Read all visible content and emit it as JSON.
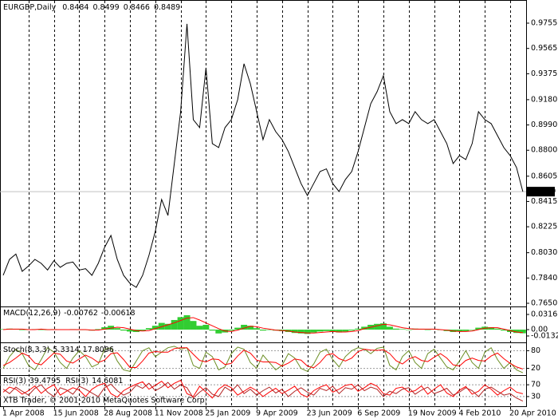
{
  "chart_data": {
    "type": "line",
    "title": "EURGBP,Daily",
    "ohlc": [
      0.8484,
      0.8499,
      0.8466,
      0.8489
    ],
    "watermark": "XTB Trader, © 2001-2010 MetaQuotes Software Corp.",
    "color": "#000000",
    "grid": true,
    "categories": [
      "1 Apr 2008",
      null,
      null,
      null,
      null,
      null,
      null,
      null,
      "15 Jun 2008",
      null,
      null,
      null,
      null,
      null,
      null,
      null,
      "28 Aug 2008",
      null,
      null,
      null,
      null,
      null,
      null,
      null,
      "11 Nov 2008",
      null,
      null,
      null,
      null,
      null,
      null,
      null,
      "25 Jan 2009",
      null,
      null,
      null,
      null,
      null,
      null,
      null,
      "9 Apr 2009",
      null,
      null,
      null,
      null,
      null,
      null,
      null,
      "23 Jun 2009",
      null,
      null,
      null,
      null,
      null,
      null,
      null,
      "6 Sep 2009",
      null,
      null,
      null,
      null,
      null,
      null,
      null,
      "19 Nov 2009",
      null,
      null,
      null,
      null,
      null,
      null,
      null,
      "4 Feb 2010",
      null,
      null,
      null,
      null,
      null,
      null,
      null,
      "20 Apr 2010",
      null,
      null
    ],
    "values": [
      0.786,
      0.798,
      0.802,
      0.789,
      0.793,
      0.798,
      0.795,
      0.79,
      0.797,
      0.792,
      0.795,
      0.796,
      0.79,
      0.791,
      0.786,
      0.795,
      0.807,
      0.816,
      0.798,
      0.786,
      0.78,
      0.777,
      0.786,
      0.801,
      0.819,
      0.843,
      0.831,
      0.87,
      0.909,
      0.975,
      0.903,
      0.897,
      0.942,
      0.885,
      0.882,
      0.897,
      0.903,
      0.918,
      0.945,
      0.93,
      0.909,
      0.888,
      0.903,
      0.894,
      0.888,
      0.879,
      0.867,
      0.855,
      0.846,
      0.855,
      0.864,
      0.866,
      0.855,
      0.849,
      0.858,
      0.864,
      0.879,
      0.897,
      0.915,
      0.924,
      0.936,
      0.909,
      0.9,
      0.903,
      0.9,
      0.909,
      0.903,
      0.9,
      0.903,
      0.894,
      0.885,
      0.87,
      0.876,
      0.873,
      0.885,
      0.909,
      0.903,
      0.9,
      0.891,
      0.882,
      0.876,
      0.867,
      0.8489
    ],
    "ylim": [
      0.7632,
      0.9917
    ],
    "yticks": [
      0.9755,
      0.9565,
      0.9375,
      {
        "value": 0.918,
        "label": "0.9180"
      },
      {
        "value": 0.899,
        "label": "0.8990"
      },
      {
        "value": 0.88,
        "label": "0.8800"
      },
      0.8605,
      0.8415,
      0.8225,
      {
        "value": 0.803,
        "label": "0.8030"
      },
      {
        "value": 0.784,
        "label": "0.7840"
      },
      {
        "value": 0.765,
        "label": "0.7650"
      }
    ],
    "panels": [
      {
        "type": "macd",
        "title": "MACD(12,26,9)",
        "color": "#32cd32",
        "signal_color": "#ff0000",
        "ylim": [
          -0.0233,
          0.0449
        ],
        "yticks": [
          0.0316,
          {
            "value": 0,
            "label": "0.00"
          },
          -0.01327
        ],
        "values": [
          0.001,
          0.002,
          0.001,
          -0.001,
          0.0,
          0.001,
          0.0,
          -0.001,
          0.001,
          0.0,
          0.0,
          0.001,
          -0.001,
          -0.001,
          -0.002,
          0.001,
          0.005,
          0.008,
          0.003,
          -0.002,
          -0.004,
          -0.005,
          -0.002,
          0.003,
          0.008,
          0.014,
          0.012,
          0.02,
          0.026,
          0.03,
          0.018,
          0.008,
          0.01,
          -0.002,
          -0.008,
          -0.006,
          -0.002,
          0.004,
          0.01,
          0.008,
          0.003,
          -0.002,
          0.0,
          -0.002,
          -0.003,
          -0.005,
          -0.007,
          -0.008,
          -0.009,
          -0.006,
          -0.004,
          -0.003,
          -0.005,
          -0.006,
          -0.004,
          -0.002,
          0.002,
          0.006,
          0.01,
          0.012,
          0.013,
          0.006,
          0.002,
          0.001,
          0.0,
          0.002,
          0.001,
          0.0,
          0.001,
          -0.001,
          -0.003,
          -0.005,
          -0.004,
          -0.003,
          -0.001,
          0.004,
          0.006,
          0.005,
          0.002,
          -0.002,
          -0.005,
          -0.007,
          -0.00762
        ],
        "signal": [
          0.0,
          0.001,
          0.001,
          0.001,
          0.0,
          0.0,
          0.001,
          0.0,
          0.0,
          0.0,
          0.0,
          0.0,
          0.0,
          0.0,
          -0.001,
          -0.001,
          0.001,
          0.003,
          0.005,
          0.004,
          0.001,
          -0.002,
          -0.003,
          -0.002,
          0.002,
          0.006,
          0.01,
          0.014,
          0.019,
          0.024,
          0.025,
          0.02,
          0.014,
          0.008,
          0.002,
          -0.003,
          -0.004,
          -0.001,
          0.003,
          0.007,
          0.006,
          0.003,
          0.001,
          -0.001,
          -0.002,
          -0.003,
          -0.005,
          -0.006,
          -0.007,
          -0.007,
          -0.006,
          -0.005,
          -0.004,
          -0.005,
          -0.005,
          -0.004,
          -0.002,
          0.002,
          0.005,
          0.008,
          0.011,
          0.01,
          0.007,
          0.004,
          0.002,
          0.001,
          0.001,
          0.001,
          0.001,
          0.0,
          -0.001,
          -0.003,
          -0.004,
          -0.004,
          -0.003,
          0.0,
          0.003,
          0.004,
          0.004,
          0.001,
          -0.002,
          -0.005,
          -0.00618
        ]
      },
      {
        "type": "line",
        "title": "Stoch(8,3,3)",
        "ylim": [
          0,
          100
        ],
        "yticks": [
          80,
          20
        ],
        "series": [
          {
            "color": "#6b8e23",
            "values": [
              20,
              60,
              85,
              70,
              30,
              15,
              50,
              90,
              75,
              40,
              20,
              55,
              80,
              60,
              25,
              35,
              85,
              90,
              45,
              15,
              10,
              45,
              80,
              90,
              60,
              75,
              90,
              95,
              85,
              90,
              30,
              20,
              75,
              60,
              15,
              25,
              70,
              92,
              85,
              40,
              20,
              65,
              40,
              15,
              30,
              70,
              55,
              20,
              10,
              35,
              75,
              85,
              50,
              25,
              60,
              80,
              90,
              85,
              70,
              88,
              92,
              30,
              15,
              60,
              80,
              40,
              20,
              70,
              85,
              55,
              25,
              15,
              45,
              80,
              40,
              20,
              75,
              90,
              50,
              20,
              40,
              15,
              5.3314
            ]
          },
          {
            "color": "#ff0000",
            "values": [
              30,
              40,
              55,
              72,
              62,
              38,
              32,
              52,
              72,
              68,
              45,
              38,
              52,
              65,
              55,
              40,
              48,
              70,
              73,
              50,
              23,
              23,
              45,
              72,
              77,
              75,
              75,
              87,
              90,
              90,
              68,
              47,
              42,
              52,
              50,
              33,
              37,
              62,
              82,
              72,
              48,
              42,
              42,
              40,
              28,
              38,
              52,
              48,
              28,
              22,
              40,
              65,
              70,
              53,
              45,
              55,
              77,
              85,
              82,
              81,
              83,
              70,
              46,
              35,
              52,
              60,
              47,
              43,
              58,
              70,
              55,
              32,
              28,
              47,
              55,
              47,
              45,
              62,
              72,
              53,
              37,
              25,
              17.8096
            ]
          }
        ]
      },
      {
        "type": "line",
        "ylim": [
          0,
          100
        ],
        "yticks": [
          70,
          30
        ],
        "series": [
          {
            "name": "RSI(3)",
            "color": "#ff0000",
            "values": [
              45,
              62,
              55,
              38,
              50,
              66,
              41,
              58,
              70,
              35,
              48,
              60,
              52,
              30,
              55,
              68,
              75,
              40,
              28,
              50,
              62,
              72,
              80,
              55,
              68,
              82,
              60,
              75,
              85,
              40,
              30,
              65,
              45,
              25,
              55,
              70,
              60,
              35,
              48,
              62,
              50,
              30,
              45,
              58,
              40,
              52,
              65,
              38,
              28,
              50,
              62,
              70,
              45,
              55,
              68,
              72,
              48,
              60,
              75,
              65,
              40,
              35,
              58,
              62,
              45,
              50,
              66,
              38,
              55,
              70,
              42,
              30,
              52,
              64,
              38,
              48,
              70,
              55,
              35,
              50,
              62,
              45,
              39.4795
            ]
          },
          {
            "name": "RSI(3)",
            "color": "#b22222",
            "values": [
              55,
              40,
              62,
              48,
              35,
              58,
              70,
              45,
              30,
              60,
              52,
              38,
              65,
              55,
              42,
              30,
              60,
              72,
              50,
              35,
              45,
              68,
              58,
              75,
              50,
              62,
              78,
              55,
              70,
              60,
              25,
              45,
              60,
              38,
              30,
              62,
              48,
              70,
              40,
              55,
              35,
              50,
              62,
              42,
              55,
              30,
              48,
              60,
              45,
              35,
              58,
              50,
              65,
              40,
              60,
              55,
              70,
              50,
              62,
              55,
              30,
              48,
              40,
              55,
              60,
              38,
              52,
              62,
              40,
              48,
              58,
              35,
              45,
              60,
              50,
              30,
              55,
              62,
              48,
              35,
              40,
              25,
              14.6081
            ]
          }
        ]
      }
    ]
  }
}
